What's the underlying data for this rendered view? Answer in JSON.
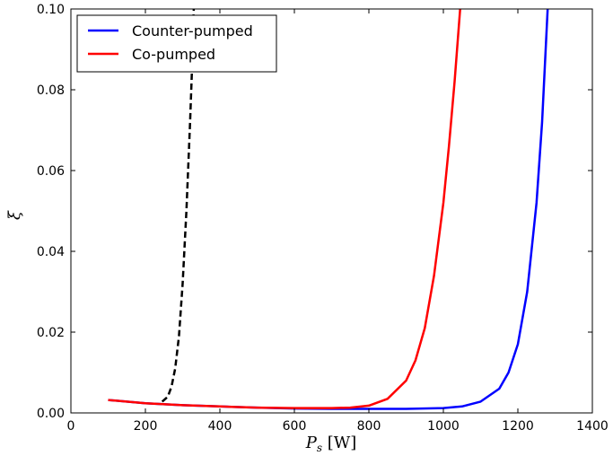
{
  "chart_data": {
    "type": "line",
    "xlabel": "P_s [W]",
    "ylabel": "ξ",
    "xlim": [
      0,
      1400
    ],
    "ylim": [
      0,
      0.1
    ],
    "xticks": [
      0,
      200,
      400,
      600,
      800,
      1000,
      1200,
      1400
    ],
    "xtick_labels": [
      "0",
      "200",
      "400",
      "600",
      "800",
      "1000",
      "1200",
      "1400"
    ],
    "yticks": [
      0.0,
      0.02,
      0.04,
      0.06,
      0.08,
      0.1
    ],
    "ytick_labels": [
      "0.00",
      "0.02",
      "0.04",
      "0.06",
      "0.08",
      "0.10"
    ],
    "grid": false,
    "legend_position": "top-left",
    "series": [
      {
        "name": "Counter-pumped",
        "color": "#0000ff",
        "style": "solid",
        "x": [
          100,
          200,
          300,
          400,
          500,
          600,
          700,
          800,
          900,
          1000,
          1050,
          1100,
          1150,
          1175,
          1200,
          1225,
          1250,
          1265,
          1280
        ],
        "y": [
          0.0032,
          0.0024,
          0.0019,
          0.0016,
          0.0013,
          0.0011,
          0.001,
          0.001,
          0.001,
          0.0012,
          0.0016,
          0.0028,
          0.006,
          0.01,
          0.017,
          0.03,
          0.052,
          0.072,
          0.1
        ]
      },
      {
        "name": "Co-pumped",
        "color": "#ff0000",
        "style": "solid",
        "x": [
          100,
          200,
          300,
          400,
          500,
          600,
          700,
          750,
          800,
          850,
          900,
          925,
          950,
          975,
          1000,
          1015,
          1030,
          1045
        ],
        "y": [
          0.0032,
          0.0024,
          0.0019,
          0.0016,
          0.0013,
          0.0012,
          0.0012,
          0.0013,
          0.0018,
          0.0035,
          0.008,
          0.013,
          0.021,
          0.034,
          0.052,
          0.066,
          0.082,
          0.1
        ]
      },
      {
        "color": "#000000",
        "style": "dashed",
        "x": [
          245,
          260,
          270,
          280,
          290,
          300,
          310,
          320,
          325,
          330
        ],
        "y": [
          0.0028,
          0.004,
          0.0065,
          0.011,
          0.019,
          0.032,
          0.05,
          0.072,
          0.085,
          0.1
        ]
      }
    ]
  }
}
